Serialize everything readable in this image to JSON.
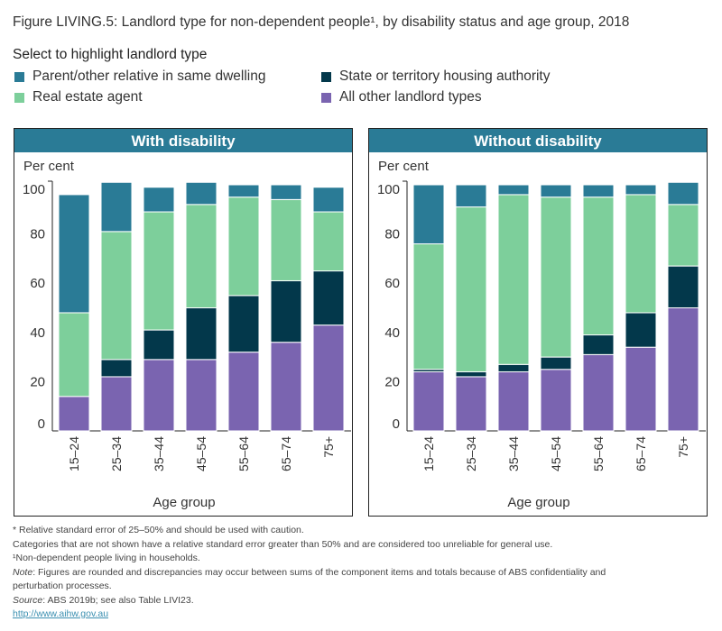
{
  "title": "Figure LIVING.5: Landlord type for non-dependent people¹, by disability status and age group, 2018",
  "legend": {
    "title": "Select to highlight landlord type",
    "items": [
      {
        "label": "Parent/other relative in same dwelling",
        "color": "#2a7b96"
      },
      {
        "label": "State or territory housing authority",
        "color": "#03384b"
      },
      {
        "label": "Real estate agent",
        "color": "#7dcf9b"
      },
      {
        "label": "All other landlord types",
        "color": "#7a64b0"
      }
    ]
  },
  "chart_data": [
    {
      "type": "bar",
      "stacked": true,
      "title": "With disability",
      "ylabel": "Per cent",
      "xlabel": "Age group",
      "ylim": [
        0,
        100
      ],
      "yticks": [
        "0",
        "20",
        "40",
        "60",
        "80",
        "100"
      ],
      "categories": [
        "15–24",
        "25–34",
        "35–44",
        "45–54",
        "55–64",
        "65–74",
        "75+"
      ],
      "series": [
        {
          "name": "All other landlord types",
          "color": "#7a64b0",
          "values": [
            14,
            22,
            29,
            29,
            32,
            36,
            43
          ]
        },
        {
          "name": "State or territory housing authority",
          "color": "#03384b",
          "values": [
            0,
            7,
            12,
            21,
            23,
            25,
            22
          ]
        },
        {
          "name": "Real estate agent",
          "color": "#7dcf9b",
          "values": [
            34,
            52,
            48,
            42,
            40,
            33,
            24
          ]
        },
        {
          "name": "Parent/other relative in same dwelling",
          "color": "#2a7b96",
          "values": [
            48,
            20,
            10,
            9,
            5,
            6,
            10
          ]
        }
      ]
    },
    {
      "type": "bar",
      "stacked": true,
      "title": "Without disability",
      "ylabel": "Per cent",
      "xlabel": "Age group",
      "ylim": [
        0,
        100
      ],
      "yticks": [
        "0",
        "20",
        "40",
        "60",
        "80",
        "100"
      ],
      "categories": [
        "15–24",
        "25–34",
        "35–44",
        "45–54",
        "55–64",
        "65–74",
        "75+"
      ],
      "series": [
        {
          "name": "All other landlord types",
          "color": "#7a64b0",
          "values": [
            24,
            22,
            24,
            25,
            31,
            34,
            50
          ]
        },
        {
          "name": "State or territory housing authority",
          "color": "#03384b",
          "values": [
            1,
            2,
            3,
            5,
            8,
            14,
            17
          ]
        },
        {
          "name": "Real estate agent",
          "color": "#7dcf9b",
          "values": [
            51,
            67,
            69,
            65,
            56,
            48,
            25
          ]
        },
        {
          "name": "Parent/other relative in same dwelling",
          "color": "#2a7b96",
          "values": [
            24,
            9,
            4,
            5,
            5,
            4,
            9
          ]
        }
      ]
    }
  ],
  "footnotes": {
    "rse": "* Relative standard error of 25–50% and should be used with caution.",
    "categories": "Categories that are not shown have a relative standard error greater than 50% and are considered too unreliable for general use.",
    "nondependent": "¹Non-dependent people living in households.",
    "note_label": "Note",
    "note": ": Figures are rounded and discrepancies may occur between sums of the component items and totals because of ABS confidentiality and",
    "note_cont": "perturbation processes.",
    "source_label": "Source",
    "source": ": ABS 2019b; see also Table LIVI23.",
    "link": "http://www.aihw.gov.au"
  }
}
